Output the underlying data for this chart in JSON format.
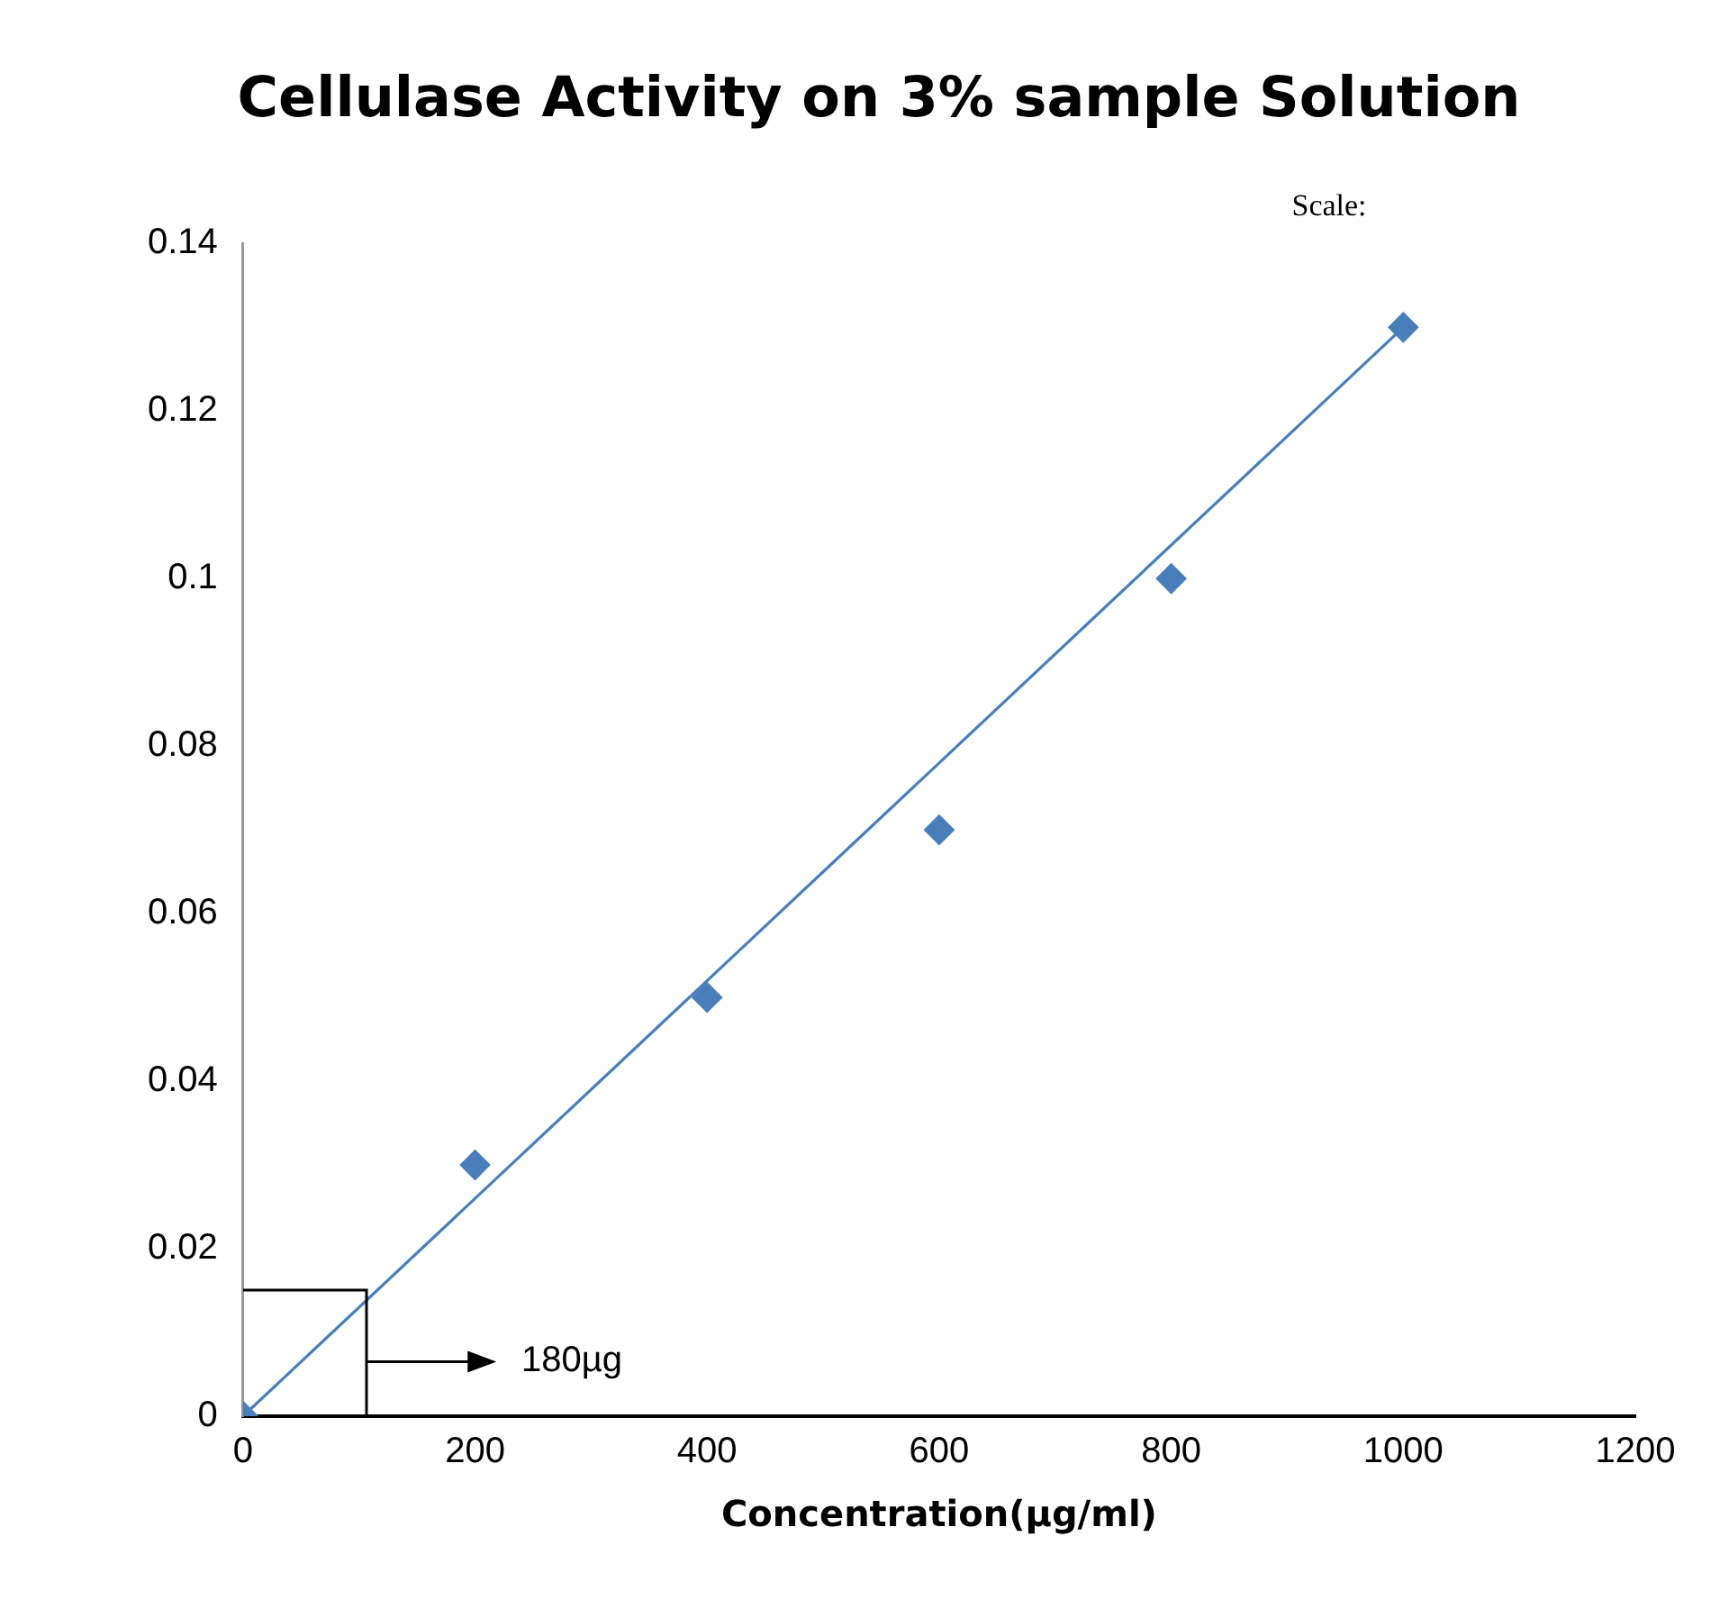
{
  "chart_data": {
    "type": "scatter",
    "title": "Cellulase Activity on 3% sample Solution",
    "xlabel": "Concentration(µg/ml)",
    "series": [
      {
        "type": "scatter",
        "color": "#4a7ebb",
        "marker": "diamond",
        "x": [
          0,
          200,
          400,
          600,
          800,
          1000
        ],
        "values": [
          0,
          0.03,
          0.05,
          0.07,
          0.1,
          0.13
        ]
      },
      {
        "type": "line",
        "color": "#4a7ebb",
        "marker": "none",
        "line_style": "solid",
        "x": [
          0,
          1000
        ],
        "values": [
          0,
          0.13
        ]
      }
    ],
    "xlim": [
      0,
      1200
    ],
    "xticks": [
      0,
      200,
      400,
      600,
      800,
      1000,
      1200
    ],
    "ylim": [
      0,
      0.14
    ],
    "yticks": [
      0,
      0.02,
      0.04,
      0.06,
      0.08,
      0.1,
      0.12,
      0.14
    ],
    "grid": false,
    "legend": false,
    "annotations": [
      "Scale:",
      "180µg"
    ]
  }
}
